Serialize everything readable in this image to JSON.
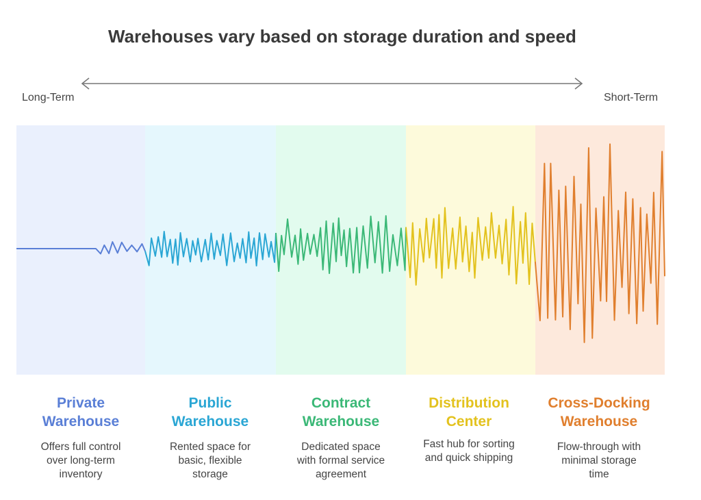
{
  "title": "Warehouses vary based on storage duration and speed",
  "axis": {
    "left_label": "Long-Term",
    "right_label": "Short-Term"
  },
  "categories": [
    {
      "name_line1": "Private",
      "name_line2": "Warehouse",
      "desc": [
        "Offers full control",
        "over long-term",
        "inventory"
      ],
      "color": "#5a7fd6",
      "bg": "#eaf0fd"
    },
    {
      "name_line1": "Public",
      "name_line2": "Warehouse",
      "desc": [
        "Rented space for",
        "basic, flexible",
        "storage"
      ],
      "color": "#2aa6d4",
      "bg": "#e5f7fd"
    },
    {
      "name_line1": "Contract",
      "name_line2": "Warehouse",
      "desc": [
        "Dedicated space",
        "with formal service",
        "agreement"
      ],
      "color": "#3bb877",
      "bg": "#e2fbee"
    },
    {
      "name_line1": "Distribution",
      "name_line2": "Center",
      "desc": [
        "Fast hub for sorting",
        "and quick shipping",
        ""
      ],
      "color": "#e3c21e",
      "bg": "#fdfadb"
    },
    {
      "name_line1": "Cross-Docking",
      "name_line2": "Warehouse",
      "desc": [
        "Flow-through with",
        "minimal storage",
        "time"
      ],
      "color": "#e07f2e",
      "bg": "#fde9dc"
    }
  ]
}
